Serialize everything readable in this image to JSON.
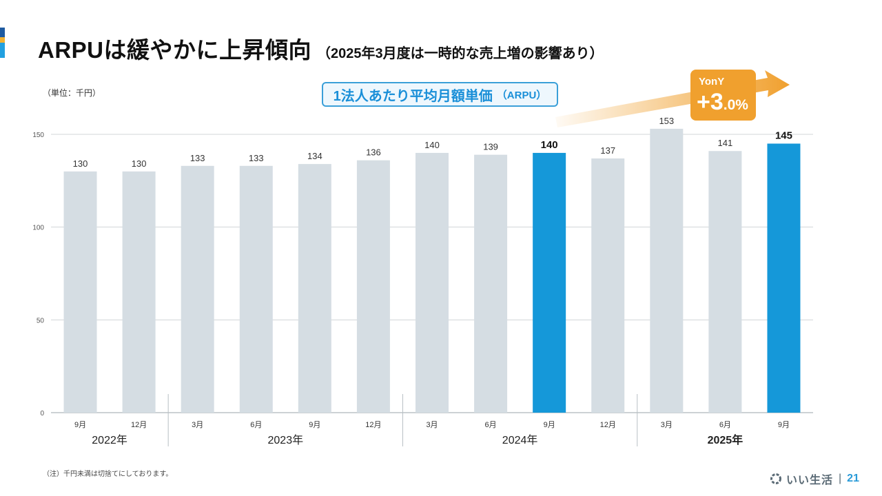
{
  "slide": {
    "title": "ARPUは緩やかに上昇傾向",
    "subtitle": "（2025年3月度は一時的な売上増の影響あり）",
    "unit_label": "（単位：千円）",
    "series_box": {
      "main": "1法人あたり平均月額単価",
      "suffix": "（ARPU）"
    },
    "yony": {
      "label": "YonY",
      "sign": "+",
      "int_part": "3",
      "dec_part": ".0%"
    },
    "note": "（注）千円未満は切捨てにしております。",
    "logo_text": "いい生活",
    "logo_sep": "|",
    "page_number": "21",
    "colors": {
      "accent_top": "#1e5aa0",
      "accent_mid": "#f2b233",
      "accent_bottom": "#22a0e0",
      "bar_gray": "#d5dde3",
      "bar_blue": "#1598d9",
      "yony_orange": "#f0a02e"
    }
  },
  "chart_data": {
    "type": "bar",
    "categories": [
      "9月",
      "12月",
      "3月",
      "6月",
      "9月",
      "12月",
      "3月",
      "6月",
      "9月",
      "12月",
      "3月",
      "6月",
      "9月"
    ],
    "values": [
      130,
      130,
      133,
      133,
      134,
      136,
      140,
      139,
      140,
      137,
      153,
      141,
      145
    ],
    "highlighted_indices": [
      8,
      12
    ],
    "bold_label_indices": [
      8,
      12
    ],
    "year_groups": [
      {
        "label": "2022年",
        "start": 0,
        "end": 1,
        "bold": false
      },
      {
        "label": "2023年",
        "start": 2,
        "end": 5,
        "bold": false
      },
      {
        "label": "2024年",
        "start": 6,
        "end": 9,
        "bold": false
      },
      {
        "label": "2025年",
        "start": 10,
        "end": 12,
        "bold": true
      }
    ],
    "ylim": [
      0,
      150
    ],
    "yticks": [
      0,
      50,
      100,
      150
    ],
    "grid": true,
    "title": "1法人あたり平均月額単価（ARPU）",
    "ylabel": "千円",
    "xlabel": ""
  }
}
